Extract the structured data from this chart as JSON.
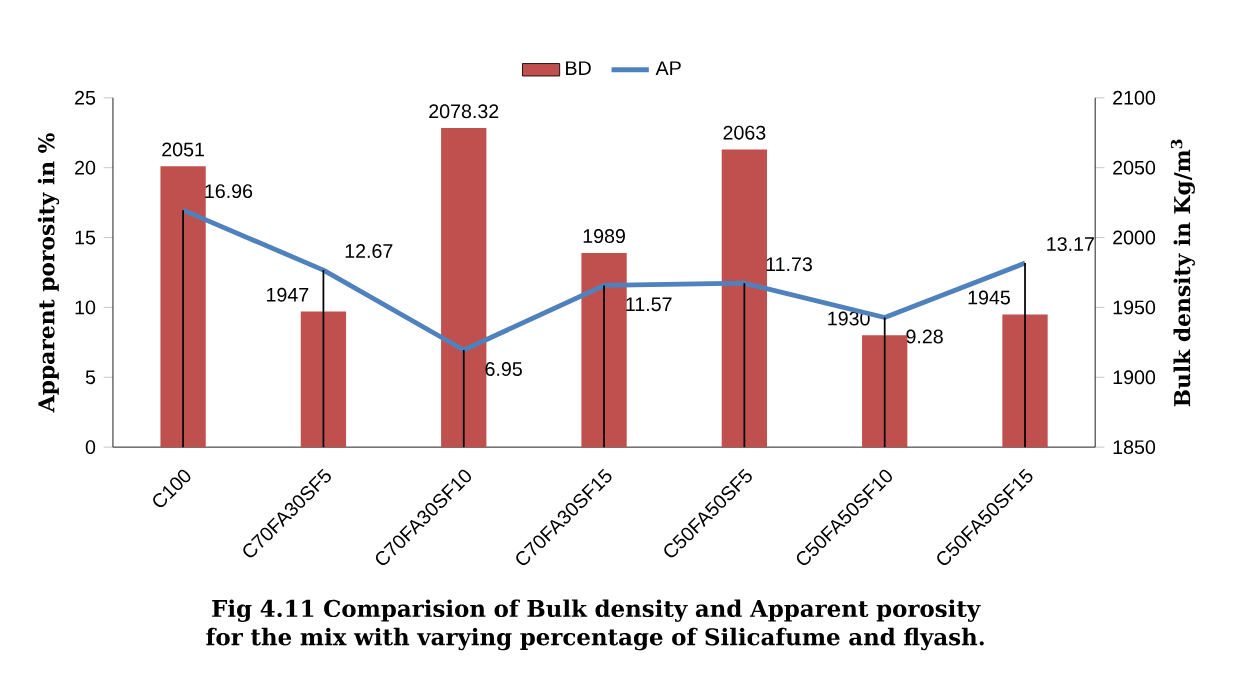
{
  "chart_data": {
    "type": "bar",
    "title": "Fig 4.11 Comparision of Bulk density and Apparent porosity for the mix with varying percentage of Silicafume and flyash.",
    "categories": [
      "C100",
      "C70FA30SF5",
      "C70FA30SF10",
      "C70FA30SF15",
      "C50FA50SF5",
      "C50FA50SF10",
      "C50FA50SF15"
    ],
    "ylabel": "Apparent porosity in %",
    "y2label": "Bulk density in Kg/m$^{3}$",
    "ylim": [
      0,
      25
    ],
    "yticks": [
      0,
      5,
      10,
      15,
      20,
      25
    ],
    "y2lim": [
      1850,
      2100
    ],
    "y2ticks": [
      1850,
      1900,
      1950,
      2000,
      2050,
      2100
    ],
    "legend": "top",
    "data_labels": true,
    "marker": "none",
    "series": [
      {
        "name": "BD",
        "axis": "y2",
        "color": "#c0504d",
        "values": [
          2051,
          1947,
          2078.32,
          1989,
          2063,
          1930,
          1945
        ]
      },
      {
        "name": "AP",
        "type": "line",
        "color": "#4f81bd",
        "values": [
          16.96,
          12.67,
          6.95,
          11.57,
          11.73,
          9.28,
          13.17
        ],
        "errors": [
          [
            0,
            16.96
          ],
          [
            0,
            12.67
          ],
          [
            0,
            6.95
          ],
          [
            0,
            11.57
          ],
          [
            0,
            11.73
          ],
          [
            0,
            9.28
          ],
          [
            0,
            13.17
          ]
        ]
      }
    ]
  }
}
